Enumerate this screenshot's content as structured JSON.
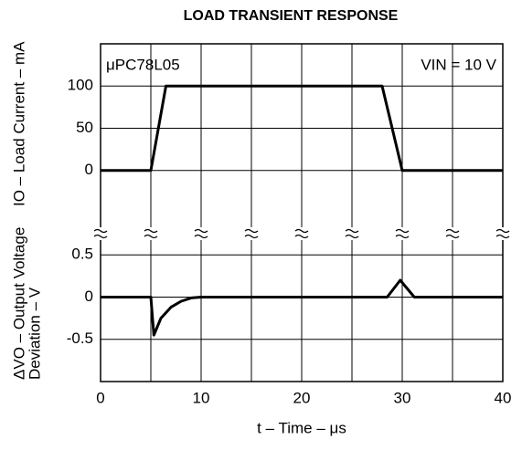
{
  "chart_data": [
    {
      "type": "line",
      "title": "LOAD TRANSIENT RESPONSE",
      "annotations": [
        "μPC78L05",
        "VIN = 10 V"
      ],
      "ylabel": "IO – Load Current – mA",
      "xlim": [
        0,
        40
      ],
      "x_minor_ticks": [
        5,
        15,
        25,
        35
      ],
      "ylim": [
        -50,
        150
      ],
      "yticks": [
        0,
        50,
        100
      ],
      "grid": true,
      "series": [
        {
          "name": "Load Current",
          "color": "#000000",
          "x": [
            0,
            5,
            6.5,
            28,
            30,
            40
          ],
          "values": [
            0,
            0,
            100,
            100,
            0,
            0
          ]
        }
      ]
    },
    {
      "type": "line",
      "xlabel": "t – Time – μs",
      "ylabel": [
        "ΔVO – Output Voltage",
        "Deviation – V"
      ],
      "xlim": [
        0,
        40
      ],
      "xticks": [
        0,
        10,
        20,
        30,
        40
      ],
      "x_minor_ticks": [
        5,
        15,
        25,
        35
      ],
      "ylim": [
        -1,
        1
      ],
      "yticks": [
        -0.5,
        0,
        0.5
      ],
      "grid": true,
      "series": [
        {
          "name": "Output Voltage Deviation",
          "color": "#000000",
          "x": [
            0,
            5,
            5.3,
            6,
            7,
            8,
            9,
            10,
            28.5,
            29.8,
            31.2,
            40
          ],
          "values": [
            0,
            0,
            -0.45,
            -0.25,
            -0.12,
            -0.05,
            -0.01,
            0,
            0,
            0.2,
            0,
            0
          ]
        }
      ]
    }
  ]
}
